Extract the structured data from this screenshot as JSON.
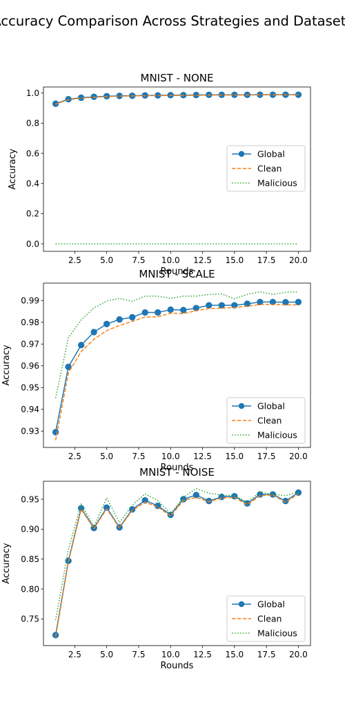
{
  "suptitle": "Accuracy Comparison Across Strategies and Datasets",
  "colors": {
    "global": "#1f77b4",
    "clean": "#ff7f0e",
    "malicious": "#2ca02c"
  },
  "chart_data": [
    {
      "type": "line",
      "title": "MNIST - NONE",
      "xlabel": "Rounds",
      "ylabel": "Accuracy",
      "x": [
        1,
        2,
        3,
        4,
        5,
        6,
        7,
        8,
        9,
        10,
        11,
        12,
        13,
        14,
        15,
        16,
        17,
        18,
        19,
        20
      ],
      "xlim": [
        0.05,
        20.95
      ],
      "ylim": [
        -0.05,
        1.04
      ],
      "xticks": [
        2.5,
        5.0,
        7.5,
        10.0,
        12.5,
        15.0,
        17.5,
        20.0
      ],
      "xtick_labels": [
        "2.5",
        "5.0",
        "7.5",
        "10.0",
        "12.5",
        "15.0",
        "17.5",
        "20.0"
      ],
      "yticks": [
        0.0,
        0.2,
        0.4,
        0.6,
        0.8,
        1.0
      ],
      "ytick_labels": [
        "0.0",
        "0.2",
        "0.4",
        "0.6",
        "0.8",
        "1.0"
      ],
      "legend_loc": "center-right",
      "series": [
        {
          "name": "Global",
          "style": "solid-marker",
          "values": [
            0.929,
            0.959,
            0.969,
            0.975,
            0.979,
            0.981,
            0.982,
            0.984,
            0.984,
            0.986,
            0.986,
            0.987,
            0.988,
            0.988,
            0.988,
            0.988,
            0.989,
            0.989,
            0.989,
            0.989
          ]
        },
        {
          "name": "Clean",
          "style": "dashed",
          "values": [
            0.926,
            0.956,
            0.966,
            0.972,
            0.976,
            0.979,
            0.981,
            0.982,
            0.983,
            0.984,
            0.984,
            0.985,
            0.986,
            0.987,
            0.987,
            0.987,
            0.988,
            0.988,
            0.988,
            0.988
          ]
        },
        {
          "name": "Malicious",
          "style": "dotted",
          "values": [
            0,
            0,
            0,
            0,
            0,
            0,
            0,
            0,
            0,
            0,
            0,
            0,
            0,
            0,
            0,
            0,
            0,
            0,
            0,
            0
          ]
        }
      ]
    },
    {
      "type": "line",
      "title": "MNIST - SCALE",
      "xlabel": "Rounds",
      "ylabel": "Accuracy",
      "x": [
        1,
        2,
        3,
        4,
        5,
        6,
        7,
        8,
        9,
        10,
        11,
        12,
        13,
        14,
        15,
        16,
        17,
        18,
        19,
        20
      ],
      "xlim": [
        0.05,
        20.95
      ],
      "ylim": [
        0.9225,
        0.998
      ],
      "xticks": [
        2.5,
        5.0,
        7.5,
        10.0,
        12.5,
        15.0,
        17.5,
        20.0
      ],
      "xtick_labels": [
        "2.5",
        "5.0",
        "7.5",
        "10.0",
        "12.5",
        "15.0",
        "17.5",
        "20.0"
      ],
      "yticks": [
        0.93,
        0.94,
        0.95,
        0.96,
        0.97,
        0.98,
        0.99
      ],
      "ytick_labels": [
        "0.93",
        "0.94",
        "0.95",
        "0.96",
        "0.97",
        "0.98",
        "0.99"
      ],
      "legend_loc": "lower-right",
      "series": [
        {
          "name": "Global",
          "style": "solid-marker",
          "values": [
            0.9295,
            0.9595,
            0.9695,
            0.9755,
            0.9792,
            0.9813,
            0.9823,
            0.9845,
            0.9845,
            0.9858,
            0.9856,
            0.9865,
            0.9878,
            0.9878,
            0.9878,
            0.9885,
            0.9893,
            0.9893,
            0.9892,
            0.9893
          ]
        },
        {
          "name": "Clean",
          "style": "dashed",
          "values": [
            0.9258,
            0.9568,
            0.9665,
            0.9722,
            0.9762,
            0.9785,
            0.9804,
            0.9824,
            0.9825,
            0.9842,
            0.984,
            0.9853,
            0.9863,
            0.9865,
            0.9868,
            0.9874,
            0.9882,
            0.9882,
            0.988,
            0.988
          ]
        },
        {
          "name": "Malicious",
          "style": "dotted",
          "values": [
            0.9452,
            0.9728,
            0.981,
            0.9866,
            0.9898,
            0.991,
            0.9896,
            0.992,
            0.992,
            0.991,
            0.992,
            0.992,
            0.9928,
            0.993,
            0.9908,
            0.9928,
            0.994,
            0.9928,
            0.9938,
            0.994
          ]
        }
      ]
    },
    {
      "type": "line",
      "title": "MNIST - NOISE",
      "xlabel": "Rounds",
      "ylabel": "Accuracy",
      "x": [
        1,
        2,
        3,
        4,
        5,
        6,
        7,
        8,
        9,
        10,
        11,
        12,
        13,
        14,
        15,
        16,
        17,
        18,
        19,
        20
      ],
      "xlim": [
        0.05,
        20.95
      ],
      "ylim": [
        0.7055,
        0.98
      ],
      "xticks": [
        2.5,
        5.0,
        7.5,
        10.0,
        12.5,
        15.0,
        17.5,
        20.0
      ],
      "xtick_labels": [
        "2.5",
        "5.0",
        "7.5",
        "10.0",
        "12.5",
        "15.0",
        "17.5",
        "20.0"
      ],
      "yticks": [
        0.75,
        0.8,
        0.85,
        0.9,
        0.95
      ],
      "ytick_labels": [
        "0.75",
        "0.80",
        "0.85",
        "0.90",
        "0.95"
      ],
      "legend_loc": "lower-right",
      "series": [
        {
          "name": "Global",
          "style": "solid-marker",
          "values": [
            0.723,
            0.847,
            0.935,
            0.902,
            0.936,
            0.903,
            0.933,
            0.948,
            0.939,
            0.924,
            0.95,
            0.957,
            0.947,
            0.954,
            0.955,
            0.943,
            0.958,
            0.958,
            0.947,
            0.961
          ]
        },
        {
          "name": "Clean",
          "style": "dashed",
          "values": [
            0.72,
            0.845,
            0.933,
            0.901,
            0.934,
            0.902,
            0.931,
            0.945,
            0.937,
            0.922,
            0.948,
            0.953,
            0.946,
            0.952,
            0.953,
            0.941,
            0.956,
            0.957,
            0.945,
            0.959
          ]
        },
        {
          "name": "Malicious",
          "style": "dotted",
          "values": [
            0.748,
            0.866,
            0.942,
            0.904,
            0.952,
            0.911,
            0.94,
            0.959,
            0.948,
            0.926,
            0.953,
            0.968,
            0.96,
            0.957,
            0.956,
            0.945,
            0.962,
            0.958,
            0.956,
            0.962
          ]
        }
      ]
    }
  ]
}
